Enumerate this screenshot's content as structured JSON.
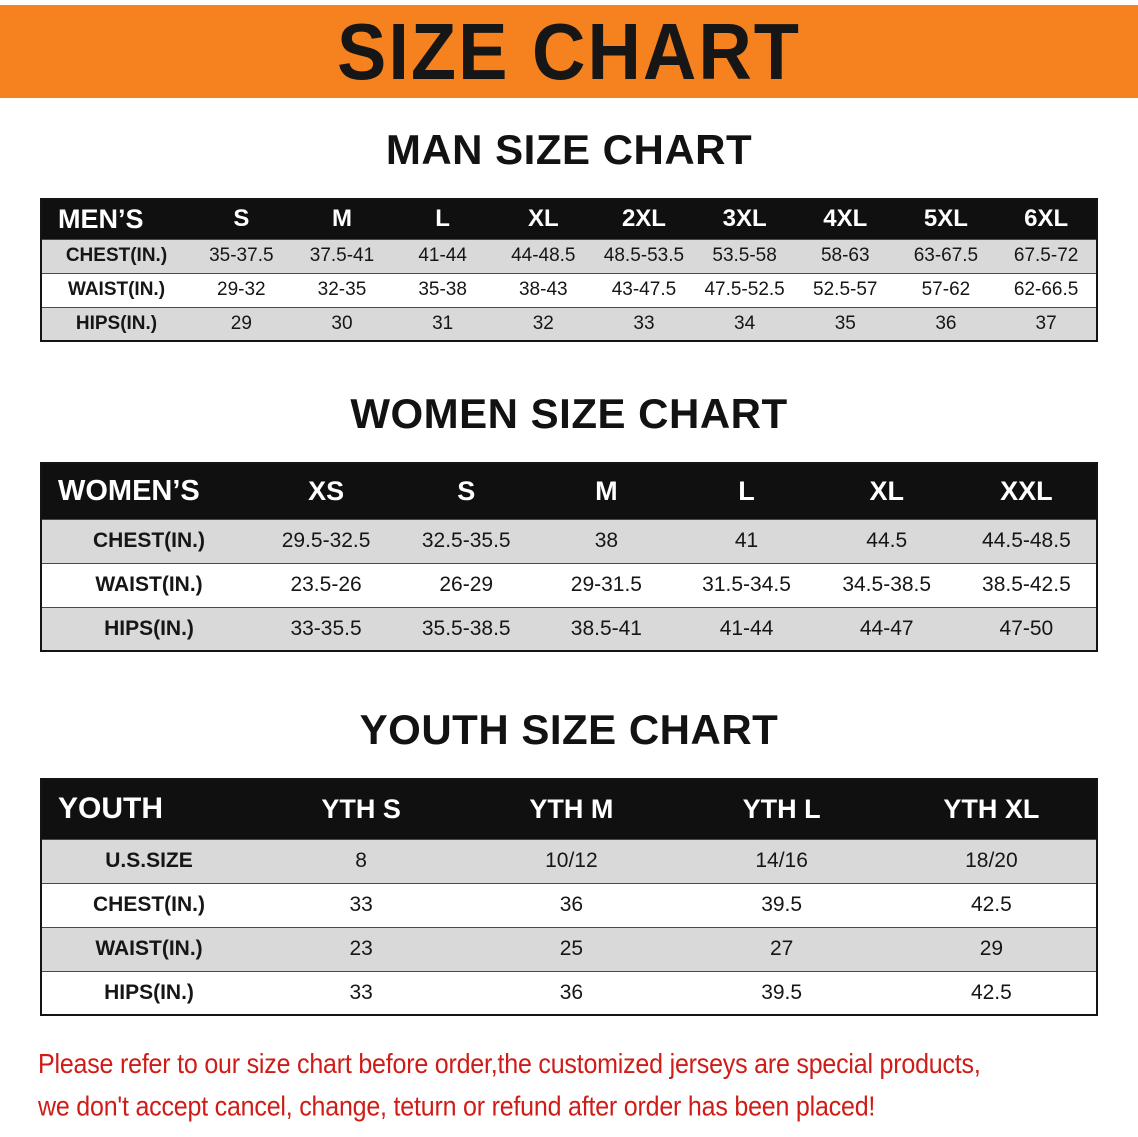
{
  "banner": {
    "title": "SIZE CHART"
  },
  "colors": {
    "banner_bg": "#F6821F",
    "header_band": "#101010",
    "row_alt": "#D9D9D9",
    "footer_text": "#CF1C17"
  },
  "footer": {
    "line1": "Please refer to our size chart before order,the customized jerseys are special products,",
    "line2": "we don't accept cancel, change, teturn or refund after order has been placed!"
  },
  "chart_data": [
    {
      "type": "table",
      "title": "MAN SIZE CHART",
      "columns": [
        "MEN’S",
        "S",
        "M",
        "L",
        "XL",
        "2XL",
        "3XL",
        "4XL",
        "5XL",
        "6XL"
      ],
      "rows": [
        [
          "CHEST(IN.)",
          "35-37.5",
          "37.5-41",
          "41-44",
          "44-48.5",
          "48.5-53.5",
          "53.5-58",
          "58-63",
          "63-67.5",
          "67.5-72"
        ],
        [
          "WAIST(IN.)",
          "29-32",
          "32-35",
          "35-38",
          "38-43",
          "43-47.5",
          "47.5-52.5",
          "52.5-57",
          "57-62",
          "62-66.5"
        ],
        [
          "HIPS(IN.)",
          "29",
          "30",
          "31",
          "32",
          "33",
          "34",
          "35",
          "36",
          "37"
        ]
      ]
    },
    {
      "type": "table",
      "title": "WOMEN SIZE CHART",
      "columns": [
        "WOMEN’S",
        "XS",
        "S",
        "M",
        "L",
        "XL",
        "XXL"
      ],
      "rows": [
        [
          "CHEST(IN.)",
          "29.5-32.5",
          "32.5-35.5",
          "38",
          "41",
          "44.5",
          "44.5-48.5"
        ],
        [
          "WAIST(IN.)",
          "23.5-26",
          "26-29",
          "29-31.5",
          "31.5-34.5",
          "34.5-38.5",
          "38.5-42.5"
        ],
        [
          "HIPS(IN.)",
          "33-35.5",
          "35.5-38.5",
          "38.5-41",
          "41-44",
          "44-47",
          "47-50"
        ]
      ]
    },
    {
      "type": "table",
      "title": "YOUTH SIZE CHART",
      "columns": [
        "YOUTH",
        "YTH S",
        "YTH M",
        "YTH L",
        "YTH XL"
      ],
      "rows": [
        [
          "U.S.SIZE",
          "8",
          "10/12",
          "14/16",
          "18/20"
        ],
        [
          "CHEST(IN.)",
          "33",
          "36",
          "39.5",
          "42.5"
        ],
        [
          "WAIST(IN.)",
          "23",
          "25",
          "27",
          "29"
        ],
        [
          "HIPS(IN.)",
          "33",
          "36",
          "39.5",
          "42.5"
        ]
      ]
    }
  ]
}
